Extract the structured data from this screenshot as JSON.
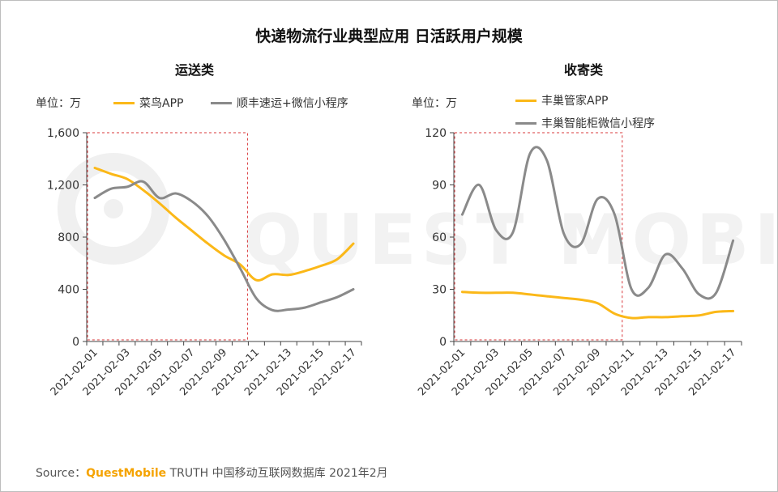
{
  "title": "快递物流行业典型应用 日活跃用户规模",
  "colors": {
    "orange": "#fbb818",
    "gray": "#8a8a8a",
    "box": "#d9373a",
    "axis": "#444444"
  },
  "watermark_text": "QUEST MOBILE",
  "unit_label": "单位：万",
  "source": {
    "prefix": "Source：",
    "brand": "QuestMobile",
    "suffix": " TRUTH 中国移动互联网数据库 2021年2月"
  },
  "chart_data": [
    {
      "type": "line",
      "title": "运送类",
      "ylim": [
        0,
        1600
      ],
      "yticks": [
        0,
        400,
        800,
        1200,
        1600
      ],
      "ytick_labels": [
        "0",
        "400",
        "800",
        "1,200",
        "1,600"
      ],
      "x": [
        "2021-02-01",
        "2021-02-02",
        "2021-02-03",
        "2021-02-04",
        "2021-02-05",
        "2021-02-06",
        "2021-02-07",
        "2021-02-08",
        "2021-02-09",
        "2021-02-10",
        "2021-02-11",
        "2021-02-12",
        "2021-02-13",
        "2021-02-14",
        "2021-02-15",
        "2021-02-16",
        "2021-02-17"
      ],
      "xtick_labels": [
        "2021-02-01",
        "2021-02-03",
        "2021-02-05",
        "2021-02-07",
        "2021-02-09",
        "2021-02-11",
        "2021-02-13",
        "2021-02-15",
        "2021-02-17"
      ],
      "highlight_range": [
        "2021-02-01",
        "2021-02-10"
      ],
      "series": [
        {
          "name": "菜鸟APP",
          "color": "#fbb818",
          "values": [
            1330,
            1285,
            1245,
            1160,
            1060,
            950,
            850,
            750,
            660,
            590,
            470,
            515,
            510,
            540,
            580,
            630,
            750
          ]
        },
        {
          "name": "顺丰速运+微信小程序",
          "color": "#8a8a8a",
          "values": [
            1100,
            1170,
            1185,
            1225,
            1100,
            1135,
            1075,
            960,
            780,
            560,
            330,
            240,
            245,
            260,
            300,
            340,
            400
          ]
        }
      ]
    },
    {
      "type": "line",
      "title": "收寄类",
      "ylim": [
        0,
        120
      ],
      "yticks": [
        0,
        30,
        60,
        90,
        120
      ],
      "ytick_labels": [
        "0",
        "30",
        "60",
        "90",
        "120"
      ],
      "x": [
        "2021-02-01",
        "2021-02-02",
        "2021-02-03",
        "2021-02-04",
        "2021-02-05",
        "2021-02-06",
        "2021-02-07",
        "2021-02-08",
        "2021-02-09",
        "2021-02-10",
        "2021-02-11",
        "2021-02-12",
        "2021-02-13",
        "2021-02-14",
        "2021-02-15",
        "2021-02-16",
        "2021-02-17"
      ],
      "xtick_labels": [
        "2021-02-01",
        "2021-02-03",
        "2021-02-05",
        "2021-02-07",
        "2021-02-09",
        "2021-02-11",
        "2021-02-13",
        "2021-02-15",
        "2021-02-17"
      ],
      "highlight_range": [
        "2021-02-01",
        "2021-02-10"
      ],
      "series": [
        {
          "name": "丰巢管家APP",
          "color": "#fbb818",
          "values": [
            28.5,
            28,
            28,
            28,
            27,
            26,
            25,
            24,
            22,
            16,
            13.5,
            14,
            14,
            14.5,
            15,
            17,
            17.5
          ]
        },
        {
          "name": "丰巢智能柜微信小程序",
          "color": "#8a8a8a",
          "values": [
            73,
            90,
            64,
            63,
            108,
            104,
            62,
            56,
            82,
            73,
            30,
            31,
            50,
            42,
            27,
            28,
            58
          ]
        }
      ]
    }
  ]
}
